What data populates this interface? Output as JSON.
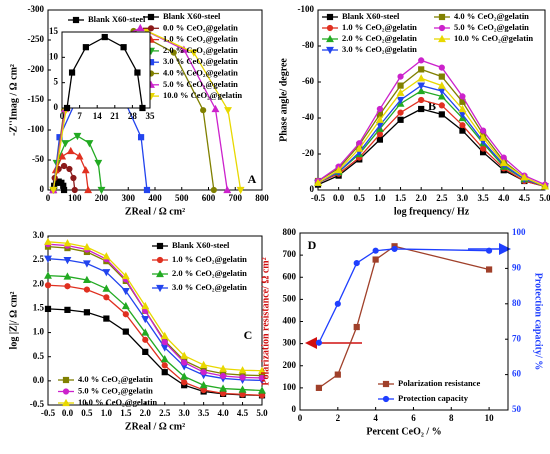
{
  "chart_data": [
    {
      "type": "line",
      "panel": "A",
      "xlabel": "ZReal / Ω cm²",
      "ylabel": "-Z''Imag / Ω cm²",
      "xlim": [
        0,
        800
      ],
      "xticks": [
        0,
        100,
        200,
        300,
        400,
        500,
        600,
        700,
        800
      ],
      "ylim": [
        0,
        -300
      ],
      "yticks": [
        0,
        -50,
        -100,
        -150,
        -200,
        -250,
        -300
      ],
      "series": [
        {
          "name": "Blank X60-steel",
          "color": "#000000",
          "x": [
            20,
            23,
            30,
            40,
            50,
            57,
            60
          ],
          "values": [
            0,
            -7,
            -12,
            -14,
            -12,
            -7,
            0
          ]
        },
        {
          "name": "0.0 % CeO₂@gelatin",
          "color": "#8b1a1a",
          "x": [
            20,
            25,
            40,
            60,
            80,
            95,
            100
          ],
          "values": [
            0,
            -20,
            -35,
            -40,
            -35,
            -20,
            0
          ]
        },
        {
          "name": "1.0 % CeO₂@gelatin",
          "color": "#e03020",
          "x": [
            20,
            29,
            53,
            85,
            118,
            141,
            150
          ],
          "values": [
            0,
            -33,
            -56,
            -65,
            -56,
            -33,
            0
          ]
        },
        {
          "name": "2.0 % CeO₂@gelatin",
          "color": "#22aa22",
          "x": [
            20,
            32,
            65,
            110,
            155,
            188,
            200
          ],
          "values": [
            0,
            -45,
            -78,
            -90,
            -78,
            -45,
            0
          ]
        },
        {
          "name": "3.0 % CeO₂@gelatin",
          "color": "#2244ee",
          "x": [
            20,
            43,
            108,
            195,
            283,
            348,
            370
          ],
          "values": [
            0,
            -88,
            -152,
            -175,
            -152,
            -88,
            0
          ]
        },
        {
          "name": "4.0 % CeO₂@gelatin",
          "color": "#808000",
          "x": [
            20,
            60,
            170,
            320,
            470,
            580,
            620
          ],
          "values": [
            0,
            -133,
            -229,
            -265,
            -229,
            -133,
            0
          ]
        },
        {
          "name": "5.0 % CeO₂@gelatin",
          "color": "#cc22cc",
          "x": [
            20,
            64,
            183,
            345,
            508,
            626,
            670
          ],
          "values": [
            0,
            -135,
            -234,
            -270,
            -234,
            -135,
            0
          ]
        },
        {
          "name": "10.0 % CeO₂@gelatin",
          "color": "#e8d800",
          "x": [
            20,
            67,
            195,
            370,
            545,
            673,
            720
          ],
          "values": [
            0,
            -133,
            -229,
            -265,
            -229,
            -133,
            0
          ]
        }
      ]
    },
    {
      "type": "line",
      "xlim": [
        0,
        35
      ],
      "xticks": [
        0,
        7,
        14,
        21,
        28,
        35
      ],
      "ylim": [
        0,
        15
      ],
      "yticks": [
        0,
        5,
        10,
        15
      ],
      "series": [
        {
          "name": "Blank X60-steel",
          "color": "#000000",
          "x": [
            2,
            4,
            9.5,
            17,
            24.5,
            30,
            32
          ],
          "values": [
            0,
            7,
            12,
            14,
            12,
            7,
            0
          ]
        }
      ]
    },
    {
      "type": "line",
      "panel": "B",
      "xlabel": "log frequency/ Hz",
      "ylabel": "Phase angle/ degree",
      "xlim": [
        -0.5,
        5
      ],
      "xticks": [
        -0.5,
        {
          "value": 0,
          "label": "0.0"
        },
        0.5,
        {
          "value": 1,
          "label": "1.0"
        },
        1.5,
        {
          "value": 2,
          "label": "2.0"
        },
        2.5,
        {
          "value": 3,
          "label": "3.0"
        },
        3.5,
        {
          "value": 4,
          "label": "4.0"
        },
        4.5,
        {
          "value": 5,
          "label": "5.0"
        }
      ],
      "ylim": [
        0,
        -100
      ],
      "yticks": [
        0,
        -20,
        -40,
        -60,
        -80,
        -100
      ],
      "x": [
        -0.5,
        0,
        0.5,
        1,
        1.5,
        2,
        2.5,
        3,
        3.5,
        4,
        4.5,
        5
      ],
      "series": [
        {
          "name": "Blank X60-steel",
          "color": "#000000",
          "values": [
            -3,
            -8,
            -17,
            -28,
            -39,
            -45,
            -42,
            -33,
            -21,
            -11,
            -5,
            -2
          ]
        },
        {
          "name": "1.0 % CeO₂@gelatin",
          "color": "#e03020",
          "values": [
            -4,
            -9,
            -18,
            -31,
            -43,
            -50,
            -47,
            -36,
            -23,
            -12,
            -5,
            -2
          ]
        },
        {
          "name": "2.0 % CeO₂@gelatin",
          "color": "#22aa22",
          "values": [
            -4,
            -10,
            -20,
            -34,
            -48,
            -55,
            -52,
            -40,
            -26,
            -13,
            -6,
            -2
          ]
        },
        {
          "name": "3.0 % CeO₂@gelatin",
          "color": "#2244ee",
          "values": [
            -4,
            -10,
            -21,
            -36,
            -50,
            -58,
            -55,
            -42,
            -27,
            -14,
            -6,
            -2
          ]
        },
        {
          "name": "4.0 % CeO₂@gelatin",
          "color": "#808000",
          "values": [
            -5,
            -12,
            -25,
            -42,
            -58,
            -67,
            -63,
            -49,
            -31,
            -16,
            -7,
            -2
          ]
        },
        {
          "name": "5.0 % CeO₂@gelatin",
          "color": "#cc22cc",
          "values": [
            -5,
            -13,
            -26,
            -45,
            -63,
            -72,
            -68,
            -52,
            -33,
            -18,
            -8,
            -3
          ]
        },
        {
          "name": "10.0 % CeO₂@gelatin",
          "color": "#e8d800",
          "values": [
            -4,
            -11,
            -23,
            -39,
            -54,
            -62,
            -58,
            -45,
            -29,
            -15,
            -7,
            -2
          ]
        }
      ]
    },
    {
      "type": "line",
      "panel": "C",
      "xlabel": "ZReal / Ω cm²",
      "ylabel": "log |Z|/ Ω cm²",
      "xlim": [
        -0.5,
        5
      ],
      "xticks": [
        -0.5,
        {
          "value": 0,
          "label": "0.0"
        },
        0.5,
        {
          "value": 1,
          "label": "1.0"
        },
        1.5,
        {
          "value": 2,
          "label": "2.0"
        },
        2.5,
        {
          "value": 3,
          "label": "3.0"
        },
        3.5,
        {
          "value": 4,
          "label": "4.0"
        },
        4.5,
        {
          "value": 5,
          "label": "5.0"
        }
      ],
      "ylim": [
        -0.5,
        3
      ],
      "yticks": [
        -0.5,
        {
          "value": 0,
          "label": "0.0"
        },
        0.5,
        {
          "value": 1,
          "label": "1.0"
        },
        1.5,
        {
          "value": 2,
          "label": "2.0"
        },
        2.5,
        {
          "value": 3,
          "label": "3.0"
        }
      ],
      "x": [
        -0.5,
        0,
        0.5,
        1,
        1.5,
        2,
        2.5,
        3,
        3.5,
        4,
        4.5,
        5
      ],
      "series": [
        {
          "name": "Blank X60-steel",
          "color": "#000000",
          "values": [
            1.49,
            1.47,
            1.42,
            1.29,
            1.02,
            0.6,
            0.18,
            -0.09,
            -0.22,
            -0.27,
            -0.29,
            -0.3
          ]
        },
        {
          "name": "1.0 % CeO₂@gelatin",
          "color": "#e03020",
          "values": [
            1.98,
            1.96,
            1.89,
            1.73,
            1.38,
            0.85,
            0.32,
            -0.03,
            -0.19,
            -0.26,
            -0.28,
            -0.3
          ]
        },
        {
          "name": "2.0 % CeO₂@gelatin",
          "color": "#22aa22",
          "values": [
            2.18,
            2.16,
            2.09,
            1.91,
            1.55,
            1.0,
            0.45,
            0.09,
            -0.09,
            -0.16,
            -0.18,
            -0.2
          ]
        },
        {
          "name": "3.0 % CeO₂@gelatin",
          "color": "#2244ee",
          "values": [
            2.53,
            2.5,
            2.43,
            2.25,
            1.86,
            1.28,
            0.69,
            0.3,
            0.12,
            0.05,
            0.02,
            0.01
          ]
        },
        {
          "name": "4.0 % CeO₂@gelatin",
          "color": "#808000",
          "values": [
            2.78,
            2.75,
            2.67,
            2.48,
            2.07,
            1.45,
            0.83,
            0.42,
            0.23,
            0.15,
            0.12,
            0.11
          ]
        },
        {
          "name": "5.0 % CeO₂@gelatin",
          "color": "#cc22cc",
          "values": [
            2.83,
            2.8,
            2.72,
            2.52,
            2.1,
            1.45,
            0.8,
            0.38,
            0.18,
            0.1,
            0.07,
            0.06
          ]
        },
        {
          "name": "10.0 % CeO₂@gelatin",
          "color": "#e8d800",
          "values": [
            2.88,
            2.85,
            2.77,
            2.58,
            2.17,
            1.55,
            0.93,
            0.52,
            0.33,
            0.25,
            0.22,
            0.21
          ]
        }
      ]
    },
    {
      "type": "line",
      "panel": "D",
      "xlabel": "Percent CeO₂ / %",
      "ylabel": "Polarization resistance/ Ω cm²",
      "y2label": "Protection capacity/ %",
      "xlim": [
        0,
        11
      ],
      "xticks": [
        0,
        2,
        4,
        6,
        8,
        10
      ],
      "ylim": [
        0,
        800
      ],
      "yticks": [
        0,
        100,
        200,
        300,
        400,
        500,
        600,
        700,
        800
      ],
      "y2lim": [
        50,
        100
      ],
      "y2ticks": [
        50,
        60,
        70,
        80,
        90,
        100
      ],
      "x": [
        1,
        2,
        3,
        4,
        5,
        10
      ],
      "series": [
        {
          "name": "Polarization resistance",
          "color": "#a0402a",
          "values": [
            100,
            160,
            375,
            680,
            740,
            635
          ]
        },
        {
          "name": "Protection capacity",
          "color": "#1f3fff",
          "axis": "y2",
          "values": [
            69,
            80,
            91.5,
            95,
            95.5,
            95
          ]
        }
      ]
    }
  ]
}
